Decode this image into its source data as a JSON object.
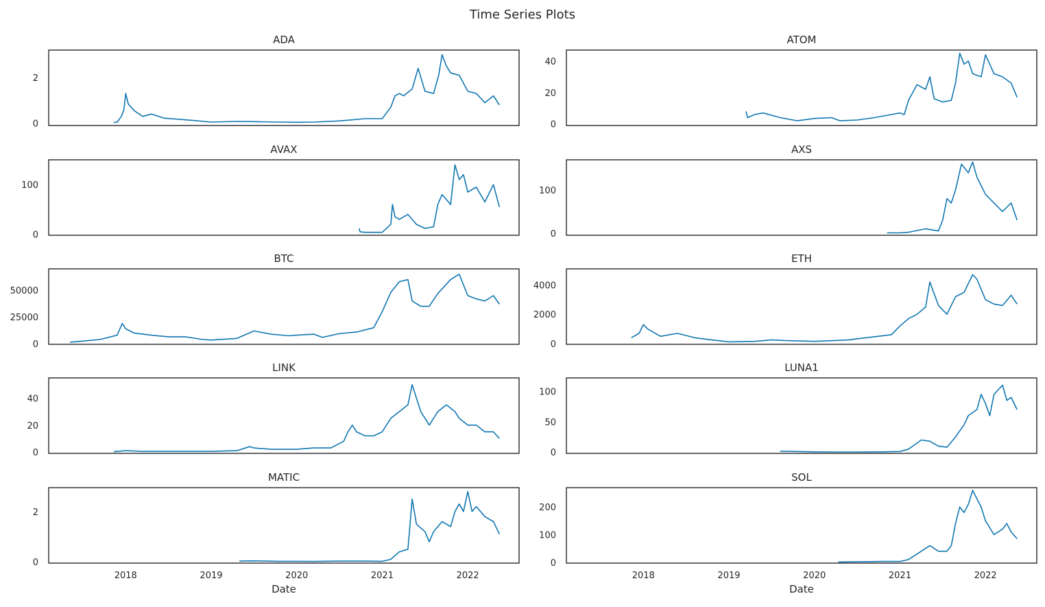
{
  "figure": {
    "title": "Time Series Plots",
    "line_color": "#0f76b1"
  },
  "chart_data": [
    {
      "type": "line",
      "title": "ADA",
      "ylim": [
        -0.1,
        3.2
      ],
      "yticks": [
        "0",
        "2"
      ],
      "ytick_values": [
        0,
        2
      ],
      "xlim": [
        2017.1,
        2022.6
      ],
      "xticks": [
        "2018",
        "2019",
        "2020",
        "2021",
        "2022"
      ],
      "xtick_values": [
        2018,
        2019,
        2020,
        2021,
        2022
      ],
      "show_xticks": false,
      "xlabel": "",
      "x": [
        2017.86,
        2017.9,
        2017.95,
        2017.98,
        2018.0,
        2018.03,
        2018.06,
        2018.1,
        2018.2,
        2018.3,
        2018.45,
        2018.6,
        2018.8,
        2019.0,
        2019.3,
        2019.5,
        2019.8,
        2020.0,
        2020.2,
        2020.5,
        2020.8,
        2021.0,
        2021.1,
        2021.15,
        2021.2,
        2021.25,
        2021.35,
        2021.42,
        2021.5,
        2021.6,
        2021.66,
        2021.7,
        2021.75,
        2021.8,
        2021.9,
        2022.0,
        2022.1,
        2022.2,
        2022.3,
        2022.37
      ],
      "y": [
        0.03,
        0.05,
        0.3,
        0.6,
        1.3,
        0.85,
        0.72,
        0.55,
        0.3,
        0.4,
        0.22,
        0.18,
        0.12,
        0.05,
        0.08,
        0.07,
        0.05,
        0.04,
        0.05,
        0.1,
        0.2,
        0.2,
        0.7,
        1.2,
        1.3,
        1.2,
        1.5,
        2.4,
        1.4,
        1.3,
        2.1,
        3.0,
        2.5,
        2.2,
        2.1,
        1.4,
        1.3,
        0.9,
        1.2,
        0.8
      ]
    },
    {
      "type": "line",
      "title": "ATOM",
      "ylim": [
        -1,
        47
      ],
      "yticks": [
        "0",
        "20",
        "40"
      ],
      "ytick_values": [
        0,
        20,
        40
      ],
      "xlim": [
        2017.1,
        2022.6
      ],
      "xticks": [
        "2018",
        "2019",
        "2020",
        "2021",
        "2022"
      ],
      "xtick_values": [
        2018,
        2019,
        2020,
        2021,
        2022
      ],
      "show_xticks": false,
      "xlabel": "",
      "x": [
        2019.2,
        2019.22,
        2019.3,
        2019.4,
        2019.6,
        2019.8,
        2020.0,
        2020.2,
        2020.3,
        2020.5,
        2020.7,
        2020.9,
        2021.0,
        2021.05,
        2021.1,
        2021.2,
        2021.3,
        2021.35,
        2021.4,
        2021.5,
        2021.6,
        2021.65,
        2021.7,
        2021.75,
        2021.8,
        2021.85,
        2021.95,
        2022.0,
        2022.1,
        2022.2,
        2022.3,
        2022.37
      ],
      "y": [
        8,
        4,
        6,
        7,
        4,
        2,
        3.5,
        4,
        2,
        2.5,
        4,
        6,
        7,
        6,
        15,
        25,
        22,
        30,
        16,
        14,
        15,
        26,
        45,
        38,
        40,
        32,
        30,
        44,
        32,
        30,
        26,
        17
      ]
    },
    {
      "type": "line",
      "title": "AVAX",
      "ylim": [
        -2,
        150
      ],
      "yticks": [
        "0",
        "100"
      ],
      "ytick_values": [
        0,
        100
      ],
      "xlim": [
        2017.1,
        2022.6
      ],
      "xticks": [
        "2018",
        "2019",
        "2020",
        "2021",
        "2022"
      ],
      "xtick_values": [
        2018,
        2019,
        2020,
        2021,
        2022
      ],
      "show_xticks": false,
      "xlabel": "",
      "x": [
        2020.73,
        2020.74,
        2020.8,
        2021.0,
        2021.1,
        2021.12,
        2021.15,
        2021.2,
        2021.3,
        2021.4,
        2021.5,
        2021.6,
        2021.65,
        2021.7,
        2021.8,
        2021.85,
        2021.9,
        2021.95,
        2022.0,
        2022.1,
        2022.2,
        2022.3,
        2022.37
      ],
      "y": [
        12,
        5,
        4,
        4,
        20,
        60,
        35,
        30,
        40,
        20,
        12,
        15,
        60,
        80,
        60,
        140,
        110,
        120,
        85,
        95,
        65,
        100,
        55
      ]
    },
    {
      "type": "line",
      "title": "AXS",
      "ylim": [
        -5,
        170
      ],
      "yticks": [
        "0",
        "100"
      ],
      "ytick_values": [
        0,
        100
      ],
      "xlim": [
        2017.1,
        2022.6
      ],
      "xticks": [
        "2018",
        "2019",
        "2020",
        "2021",
        "2022"
      ],
      "xtick_values": [
        2018,
        2019,
        2020,
        2021,
        2022
      ],
      "show_xticks": false,
      "xlabel": "",
      "x": [
        2020.85,
        2021.0,
        2021.1,
        2021.3,
        2021.45,
        2021.5,
        2021.55,
        2021.6,
        2021.65,
        2021.72,
        2021.8,
        2021.85,
        2021.9,
        2022.0,
        2022.1,
        2022.2,
        2022.3,
        2022.37
      ],
      "y": [
        0.5,
        0.5,
        2,
        10,
        5,
        30,
        80,
        70,
        100,
        160,
        140,
        165,
        130,
        90,
        70,
        50,
        70,
        30
      ]
    },
    {
      "type": "line",
      "title": "BTC",
      "ylim": [
        -500,
        70000
      ],
      "yticks": [
        "0",
        "25000",
        "50000"
      ],
      "ytick_values": [
        0,
        25000,
        50000
      ],
      "xlim": [
        2017.1,
        2022.6
      ],
      "xticks": [
        "2018",
        "2019",
        "2020",
        "2021",
        "2022"
      ],
      "xtick_values": [
        2018,
        2019,
        2020,
        2021,
        2022
      ],
      "show_xticks": false,
      "xlabel": "",
      "x": [
        2017.35,
        2017.5,
        2017.7,
        2017.9,
        2017.96,
        2018.0,
        2018.1,
        2018.3,
        2018.5,
        2018.7,
        2018.9,
        2019.0,
        2019.3,
        2019.5,
        2019.7,
        2019.9,
        2020.0,
        2020.2,
        2020.3,
        2020.5,
        2020.7,
        2020.9,
        2021.0,
        2021.1,
        2021.2,
        2021.3,
        2021.35,
        2021.45,
        2021.55,
        2021.65,
        2021.8,
        2021.9,
        2022.0,
        2022.1,
        2022.2,
        2022.3,
        2022.37
      ],
      "y": [
        1500,
        2500,
        4000,
        8000,
        19000,
        14000,
        10000,
        8000,
        6500,
        6500,
        4000,
        3500,
        5000,
        12000,
        9000,
        7500,
        8000,
        9000,
        6000,
        9500,
        11000,
        15000,
        30000,
        48000,
        58000,
        60000,
        40000,
        35000,
        35000,
        47000,
        60000,
        65000,
        45000,
        42000,
        40000,
        45000,
        37000
      ]
    },
    {
      "type": "line",
      "title": "ETH",
      "ylim": [
        -50,
        5100
      ],
      "yticks": [
        "0",
        "2000",
        "4000"
      ],
      "ytick_values": [
        0,
        2000,
        4000
      ],
      "xlim": [
        2017.1,
        2022.6
      ],
      "xticks": [
        "2018",
        "2019",
        "2020",
        "2021",
        "2022"
      ],
      "xtick_values": [
        2018,
        2019,
        2020,
        2021,
        2022
      ],
      "show_xticks": false,
      "xlabel": "",
      "x": [
        2017.86,
        2017.95,
        2018.0,
        2018.05,
        2018.2,
        2018.4,
        2018.6,
        2018.8,
        2019.0,
        2019.3,
        2019.5,
        2019.7,
        2020.0,
        2020.2,
        2020.4,
        2020.6,
        2020.9,
        2021.0,
        2021.1,
        2021.2,
        2021.3,
        2021.35,
        2021.45,
        2021.55,
        2021.65,
        2021.75,
        2021.85,
        2021.9,
        2022.0,
        2022.1,
        2022.2,
        2022.3,
        2022.37
      ],
      "y": [
        400,
        700,
        1300,
        1000,
        500,
        700,
        400,
        250,
        120,
        150,
        250,
        200,
        150,
        200,
        250,
        400,
        600,
        1200,
        1700,
        2000,
        2500,
        4200,
        2600,
        2000,
        3200,
        3500,
        4700,
        4400,
        3000,
        2700,
        2600,
        3300,
        2700
      ]
    },
    {
      "type": "line",
      "title": "LINK",
      "ylim": [
        -1,
        55
      ],
      "yticks": [
        "0",
        "20",
        "40"
      ],
      "ytick_values": [
        0,
        20,
        40
      ],
      "xlim": [
        2017.1,
        2022.6
      ],
      "xticks": [
        "2018",
        "2019",
        "2020",
        "2021",
        "2022"
      ],
      "xtick_values": [
        2018,
        2019,
        2020,
        2021,
        2022
      ],
      "show_xticks": false,
      "xlabel": "",
      "x": [
        2017.86,
        2018.0,
        2018.2,
        2018.5,
        2018.8,
        2019.0,
        2019.3,
        2019.45,
        2019.5,
        2019.7,
        2020.0,
        2020.2,
        2020.4,
        2020.55,
        2020.6,
        2020.65,
        2020.7,
        2020.8,
        2020.9,
        2021.0,
        2021.1,
        2021.2,
        2021.3,
        2021.35,
        2021.45,
        2021.55,
        2021.65,
        2021.75,
        2021.85,
        2021.9,
        2022.0,
        2022.1,
        2022.2,
        2022.3,
        2022.37
      ],
      "y": [
        0.2,
        1,
        0.5,
        0.5,
        0.5,
        0.5,
        1,
        4,
        3,
        2,
        2,
        3,
        3,
        8,
        15,
        20,
        15,
        12,
        12,
        15,
        25,
        30,
        35,
        50,
        30,
        20,
        30,
        35,
        30,
        25,
        20,
        20,
        15,
        15,
        10
      ]
    },
    {
      "type": "line",
      "title": "LUNA1",
      "ylim": [
        -2,
        122
      ],
      "yticks": [
        "0",
        "50",
        "100"
      ],
      "ytick_values": [
        0,
        50,
        100
      ],
      "xlim": [
        2017.1,
        2022.6
      ],
      "xticks": [
        "2018",
        "2019",
        "2020",
        "2021",
        "2022"
      ],
      "xtick_values": [
        2018,
        2019,
        2020,
        2021,
        2022
      ],
      "show_xticks": false,
      "xlabel": "",
      "x": [
        2019.6,
        2019.8,
        2020.0,
        2020.2,
        2020.5,
        2020.8,
        2021.0,
        2021.1,
        2021.15,
        2021.25,
        2021.35,
        2021.45,
        2021.55,
        2021.65,
        2021.75,
        2021.8,
        2021.9,
        2021.95,
        2022.0,
        2022.05,
        2022.1,
        2022.2,
        2022.25,
        2022.3,
        2022.37
      ],
      "y": [
        1.5,
        1,
        0.5,
        0.3,
        0.3,
        0.5,
        1,
        5,
        10,
        20,
        18,
        10,
        8,
        25,
        45,
        60,
        70,
        95,
        80,
        60,
        95,
        110,
        85,
        90,
        70
      ]
    },
    {
      "type": "line",
      "title": "MATIC",
      "ylim": [
        -0.05,
        2.95
      ],
      "yticks": [
        "0",
        "2"
      ],
      "ytick_values": [
        0,
        2
      ],
      "xlim": [
        2017.1,
        2022.6
      ],
      "xticks": [
        "2018",
        "2019",
        "2020",
        "2021",
        "2022"
      ],
      "xtick_values": [
        2018,
        2019,
        2020,
        2021,
        2022
      ],
      "show_xticks": true,
      "xlabel": "Date",
      "x": [
        2019.33,
        2019.5,
        2019.8,
        2020.0,
        2020.2,
        2020.5,
        2020.8,
        2021.0,
        2021.1,
        2021.2,
        2021.3,
        2021.35,
        2021.4,
        2021.5,
        2021.55,
        2021.6,
        2021.7,
        2021.8,
        2021.85,
        2021.9,
        2021.95,
        2022.0,
        2022.05,
        2022.1,
        2022.2,
        2022.3,
        2022.37
      ],
      "y": [
        0.03,
        0.04,
        0.02,
        0.02,
        0.015,
        0.03,
        0.03,
        0.02,
        0.1,
        0.4,
        0.5,
        2.5,
        1.5,
        1.2,
        0.8,
        1.2,
        1.6,
        1.4,
        2.0,
        2.3,
        2.0,
        2.8,
        2.0,
        2.2,
        1.8,
        1.6,
        1.1
      ]
    },
    {
      "type": "line",
      "title": "SOL",
      "ylim": [
        -3,
        270
      ],
      "yticks": [
        "0",
        "100",
        "200"
      ],
      "ytick_values": [
        0,
        100,
        200
      ],
      "xlim": [
        2017.1,
        2022.6
      ],
      "xticks": [
        "2018",
        "2019",
        "2020",
        "2021",
        "2022"
      ],
      "xtick_values": [
        2018,
        2019,
        2020,
        2021,
        2022
      ],
      "show_xticks": true,
      "xlabel": "Date",
      "x": [
        2020.28,
        2020.5,
        2020.8,
        2021.0,
        2021.1,
        2021.2,
        2021.3,
        2021.35,
        2021.45,
        2021.55,
        2021.6,
        2021.65,
        2021.7,
        2021.75,
        2021.8,
        2021.85,
        2021.9,
        2021.95,
        2022.0,
        2022.1,
        2022.2,
        2022.25,
        2022.3,
        2022.37
      ],
      "y": [
        1,
        2,
        3,
        3,
        10,
        30,
        50,
        60,
        40,
        40,
        60,
        140,
        200,
        180,
        210,
        260,
        230,
        200,
        150,
        100,
        120,
        140,
        110,
        85
      ]
    }
  ]
}
